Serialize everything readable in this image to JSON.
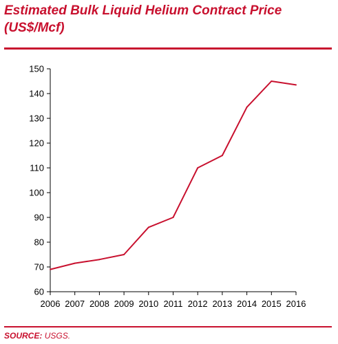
{
  "title": "Estimated Bulk Liquid Helium Contract Price (US$/Mcf)",
  "source": {
    "label": "SOURCE:",
    "text": "USGS."
  },
  "colors": {
    "accent": "#c8102e",
    "line": "#c8102e",
    "axis": "#000000"
  },
  "chart_data": {
    "type": "line",
    "title": "Estimated Bulk Liquid Helium Contract Price (US$/Mcf)",
    "xlabel": "",
    "ylabel": "",
    "x": [
      "2006",
      "2007",
      "2008",
      "2009",
      "2010",
      "2011",
      "2012",
      "2013",
      "2014",
      "2015",
      "2016"
    ],
    "series": [
      {
        "values": [
          69,
          71.5,
          73,
          75,
          86,
          90,
          110,
          115,
          134.5,
          145,
          143.5
        ]
      }
    ],
    "ylim": [
      60,
      150
    ],
    "yticks": [
      60,
      70,
      80,
      90,
      100,
      110,
      120,
      130,
      140,
      150
    ],
    "grid": false,
    "legend": "none"
  }
}
